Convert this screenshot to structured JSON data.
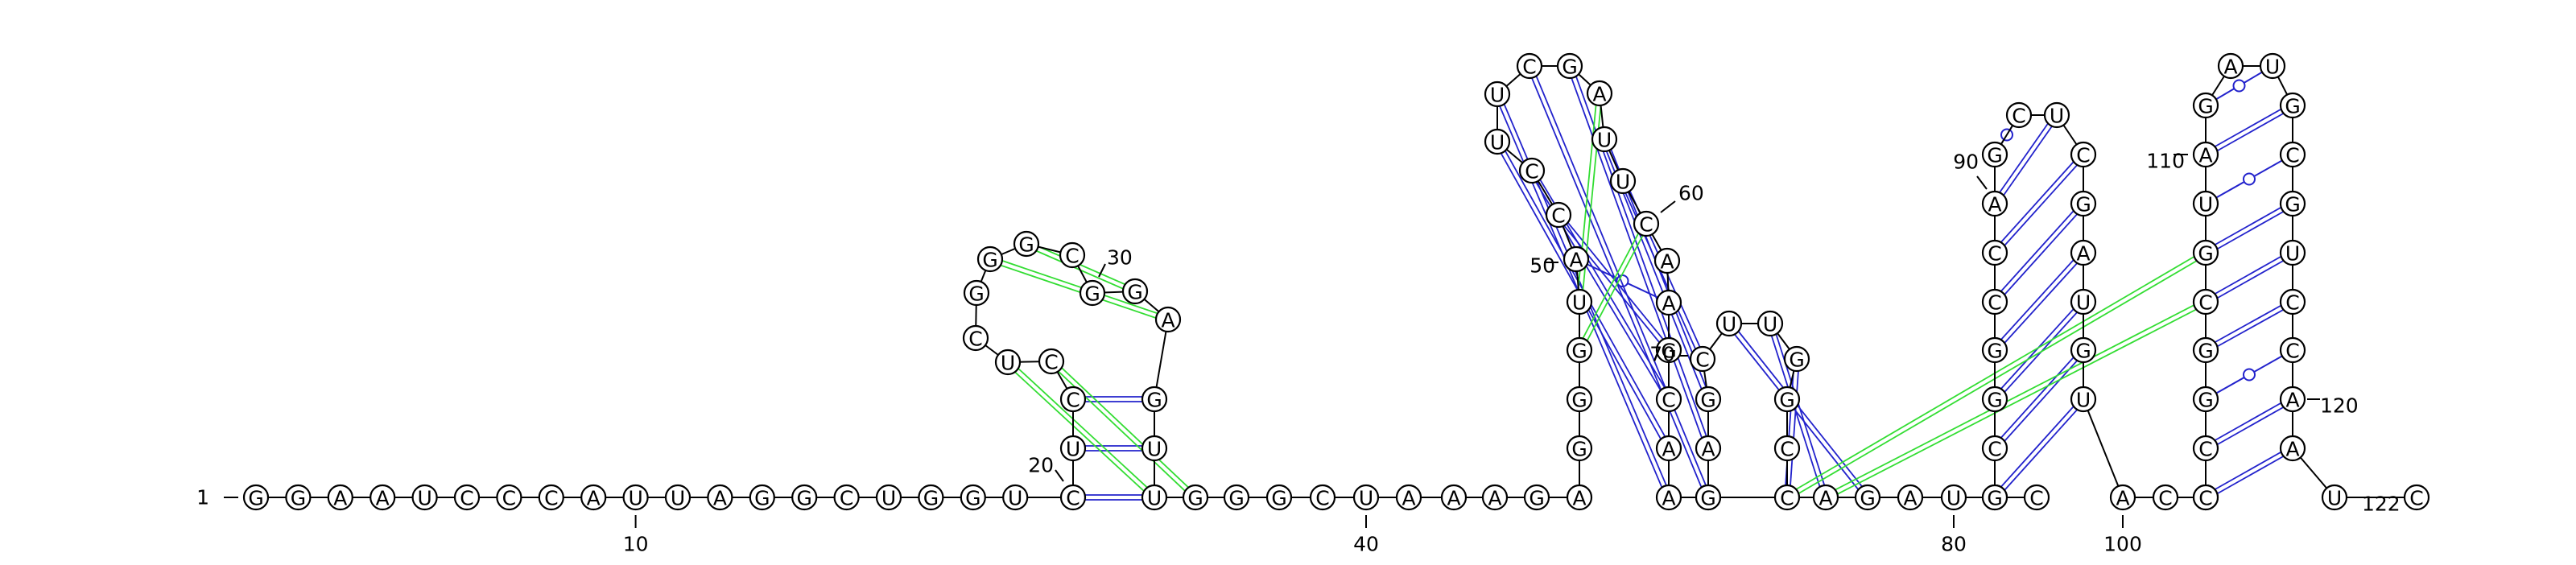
{
  "diagram": {
    "type": "rna-secondary-structure-arc-drawing",
    "sequence": "GGAAUCCCAUUAGGCUGGUCUCCUCGGGCGGAGUUGGGCUAAAGAGGGUACCUUCGAUUCAAGCAAUAGCUUGGCCAGAUCCGGCGGCCAGCUCGAUGUACCCCGGCGUAGAUGCGUCCAAUC",
    "colors": {
      "canonical": "#2222cc",
      "wobble": "#2222cc",
      "pseudoknot": "#33dd33",
      "backbone": "#000000",
      "label": "#000000"
    },
    "number_labels": [
      {
        "n": 1,
        "text": "1"
      },
      {
        "n": 10,
        "text": "10"
      },
      {
        "n": 20,
        "text": "20"
      },
      {
        "n": 30,
        "text": "30"
      },
      {
        "n": 40,
        "text": "40"
      },
      {
        "n": 50,
        "text": "50"
      },
      {
        "n": 60,
        "text": "60"
      },
      {
        "n": 70,
        "text": "70"
      },
      {
        "n": 80,
        "text": "80"
      },
      {
        "n": 90,
        "text": "90"
      },
      {
        "n": 100,
        "text": "100"
      },
      {
        "n": 110,
        "text": "110"
      },
      {
        "n": 120,
        "text": "120"
      },
      {
        "n": 122,
        "text": "122"
      }
    ],
    "pairs": [
      {
        "i": 20,
        "j": 35,
        "kind": "canonical"
      },
      {
        "i": 21,
        "j": 34,
        "kind": "canonical"
      },
      {
        "i": 22,
        "j": 33,
        "kind": "canonical"
      },
      {
        "i": 50,
        "j": 62,
        "kind": "wobble"
      },
      {
        "i": 51,
        "j": 63,
        "kind": "canonical"
      },
      {
        "i": 52,
        "j": 64,
        "kind": "canonical"
      },
      {
        "i": 53,
        "j": 65,
        "kind": "canonical"
      },
      {
        "i": 54,
        "j": 66,
        "kind": "canonical"
      },
      {
        "i": 55,
        "j": 67,
        "kind": "canonical"
      },
      {
        "i": 56,
        "j": 68,
        "kind": "canonical"
      },
      {
        "i": 58,
        "j": 69,
        "kind": "canonical"
      },
      {
        "i": 59,
        "j": 70,
        "kind": "canonical"
      },
      {
        "i": 71,
        "j": 78,
        "kind": "canonical"
      },
      {
        "i": 72,
        "j": 77,
        "kind": "canonical"
      },
      {
        "i": 73,
        "j": 76,
        "kind": "canonical"
      },
      {
        "i": 84,
        "j": 99,
        "kind": "canonical"
      },
      {
        "i": 85,
        "j": 98,
        "kind": "canonical"
      },
      {
        "i": 86,
        "j": 97,
        "kind": "canonical"
      },
      {
        "i": 87,
        "j": 96,
        "kind": "canonical"
      },
      {
        "i": 88,
        "j": 95,
        "kind": "canonical"
      },
      {
        "i": 89,
        "j": 94,
        "kind": "canonical"
      },
      {
        "i": 90,
        "j": 93,
        "kind": "canonical"
      },
      {
        "i": 91,
        "j": 92,
        "kind": "wobble"
      },
      {
        "i": 103,
        "j": 121,
        "kind": "canonical"
      },
      {
        "i": 104,
        "j": 120,
        "kind": "canonical"
      },
      {
        "i": 105,
        "j": 119,
        "kind": "wobble"
      },
      {
        "i": 106,
        "j": 118,
        "kind": "canonical"
      },
      {
        "i": 107,
        "j": 117,
        "kind": "canonical"
      },
      {
        "i": 108,
        "j": 116,
        "kind": "canonical"
      },
      {
        "i": 109,
        "j": 115,
        "kind": "wobble"
      },
      {
        "i": 110,
        "j": 114,
        "kind": "canonical"
      },
      {
        "i": 111,
        "j": 113,
        "kind": "wobble"
      },
      {
        "i": 23,
        "j": 36,
        "kind": "pseudoknot"
      },
      {
        "i": 24,
        "j": 35,
        "kind": "pseudoknot"
      },
      {
        "i": 27,
        "j": 32,
        "kind": "pseudoknot"
      },
      {
        "i": 28,
        "j": 31,
        "kind": "pseudoknot"
      },
      {
        "i": 57,
        "j": 49,
        "kind": "pseudoknot"
      },
      {
        "i": 60,
        "j": 48,
        "kind": "pseudoknot"
      },
      {
        "i": 76,
        "j": 108,
        "kind": "pseudoknot"
      },
      {
        "i": 77,
        "j": 107,
        "kind": "pseudoknot"
      }
    ]
  }
}
